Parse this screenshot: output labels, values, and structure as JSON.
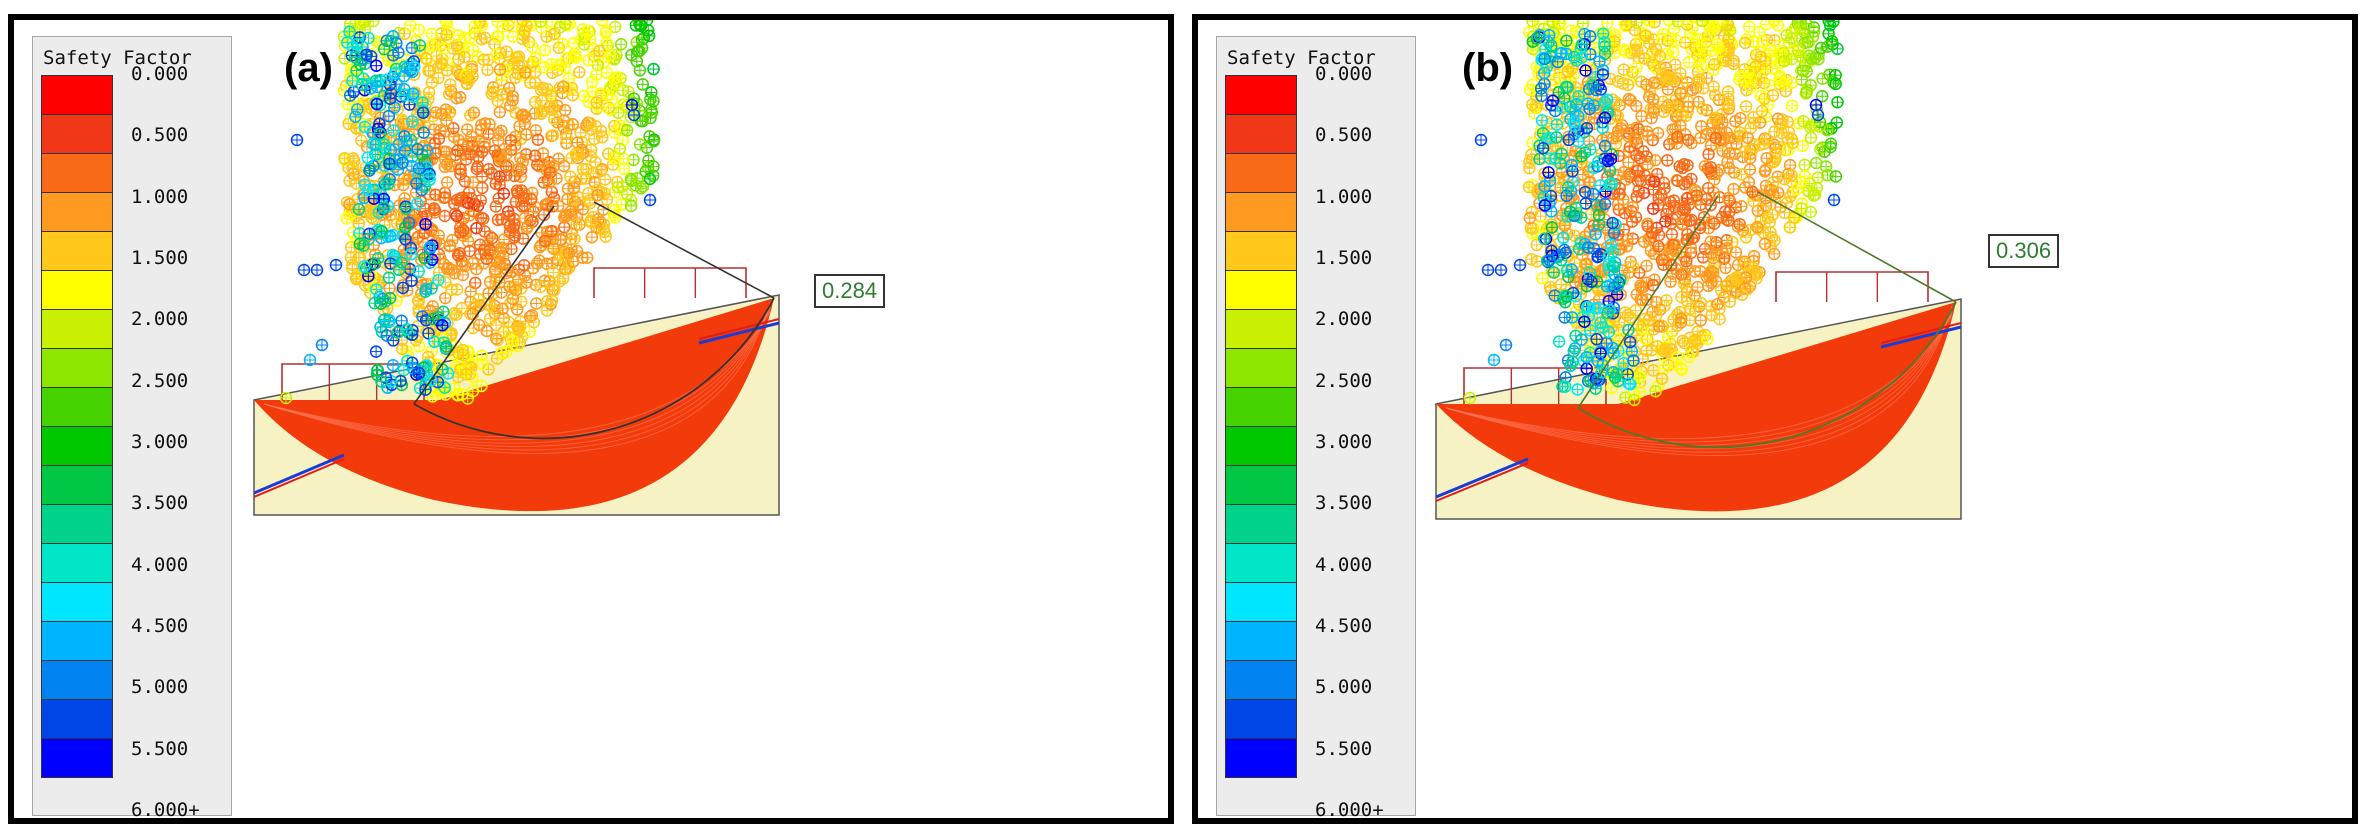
{
  "chart_data": [
    {
      "type": "heatmap",
      "panel_label": "(a)",
      "legend_title": "Safety Factor",
      "legend_ticks": [
        "0.000",
        "0.500",
        "1.000",
        "1.500",
        "2.000",
        "2.500",
        "3.000",
        "3.500",
        "4.000",
        "4.500",
        "5.000",
        "5.500",
        "6.000+"
      ],
      "legend_colors": [
        "#ff0000",
        "#f03818",
        "#f86a18",
        "#ff9a20",
        "#ffc81a",
        "#ffff00",
        "#c8f000",
        "#8ce600",
        "#46d200",
        "#00c800",
        "#00c846",
        "#00d28c",
        "#00e6c8",
        "#00e6ff",
        "#00b4ff",
        "#0082f0",
        "#0046e6",
        "#0000ff"
      ],
      "minimum_safety_factor": "0.284"
    },
    {
      "type": "heatmap",
      "panel_label": "(b)",
      "legend_title": "Safety Factor",
      "legend_ticks": [
        "0.000",
        "0.500",
        "1.000",
        "1.500",
        "2.000",
        "2.500",
        "3.000",
        "3.500",
        "4.000",
        "4.500",
        "5.000",
        "5.500",
        "6.000+"
      ],
      "legend_colors": [
        "#ff0000",
        "#f03818",
        "#f86a18",
        "#ff9a20",
        "#ffc81a",
        "#ffff00",
        "#c8f000",
        "#8ce600",
        "#46d200",
        "#00c800",
        "#00c846",
        "#00d28c",
        "#00e6c8",
        "#00e6ff",
        "#00b4ff",
        "#0082f0",
        "#0046e6",
        "#0000ff"
      ],
      "minimum_safety_factor": "0.306"
    }
  ]
}
